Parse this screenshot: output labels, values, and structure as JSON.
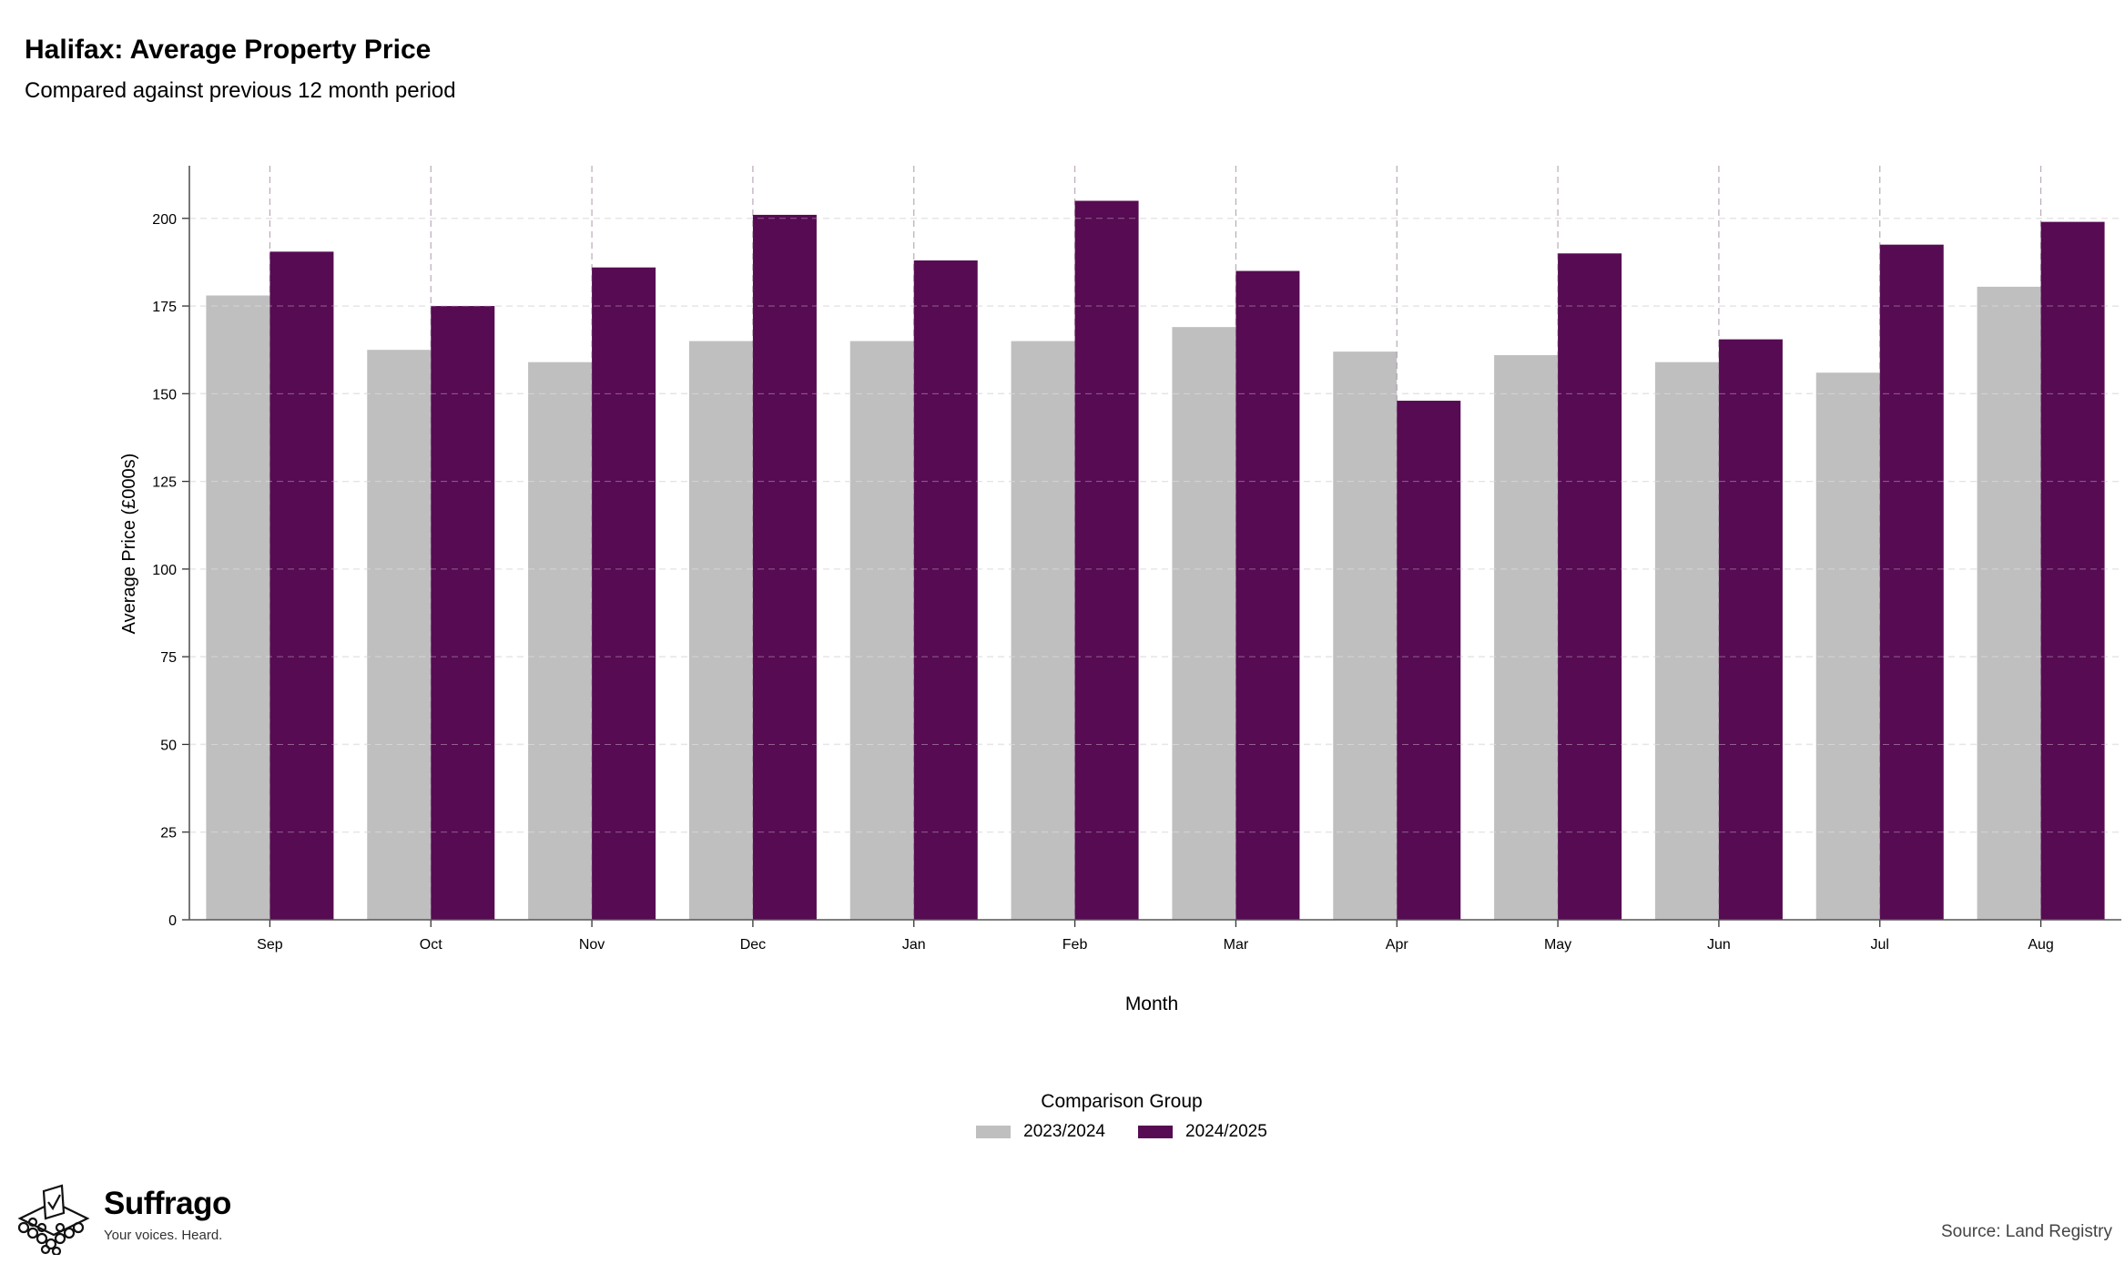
{
  "title": "Halifax: Average Property Price",
  "subtitle": "Compared against previous 12 month period",
  "chart_data": {
    "type": "bar",
    "xlabel": "Month",
    "ylabel": "Average Price (£000s)",
    "categories": [
      "Sep",
      "Oct",
      "Nov",
      "Dec",
      "Jan",
      "Feb",
      "Mar",
      "Apr",
      "May",
      "Jun",
      "Jul",
      "Aug"
    ],
    "series": [
      {
        "name": "2023/2024",
        "color": "#bfbfbf",
        "values": [
          178,
          162.5,
          159,
          165,
          165,
          165,
          169,
          162,
          161,
          159,
          156,
          180.5
        ]
      },
      {
        "name": "2024/2025",
        "color": "#560b52",
        "values": [
          190.5,
          175,
          186,
          201,
          188,
          205,
          185,
          148,
          190,
          165.5,
          192.5,
          199
        ]
      }
    ],
    "ylim": [
      0,
      215
    ],
    "yticks": [
      0,
      25,
      50,
      75,
      100,
      125,
      150,
      175,
      200
    ],
    "grid": true,
    "legend_title": "Comparison Group",
    "legend_position": "bottom"
  },
  "brand": {
    "name": "Suffrago",
    "tagline": "Your voices. Heard."
  },
  "source": "Source: Land Registry"
}
